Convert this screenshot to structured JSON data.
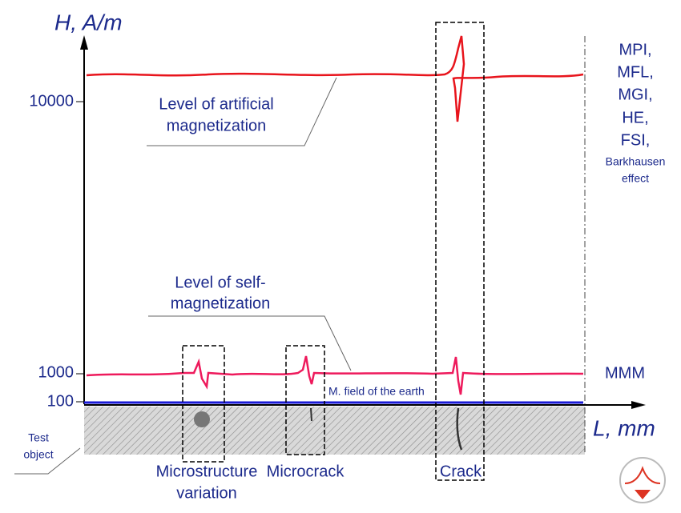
{
  "axis": {
    "y_label": "H, A/m",
    "x_label": "L, mm",
    "ticks": [
      "10000",
      "1000",
      "100"
    ]
  },
  "annotations": {
    "artificial": [
      "Level of artificial",
      "magnetization"
    ],
    "self": [
      "Level of self-",
      "magnetization"
    ],
    "earth": "M. field of the earth",
    "test_object": [
      "Test",
      "object"
    ]
  },
  "methods": [
    "MPI,",
    "MFL,",
    "MGI,",
    "HE,",
    "FSI,",
    "Barkhausen",
    "effect"
  ],
  "mmm": "MMM",
  "regions": {
    "microstructure": [
      "Microstructure",
      "variation"
    ],
    "microcrack": "Microcrack",
    "crack": "Crack"
  }
}
